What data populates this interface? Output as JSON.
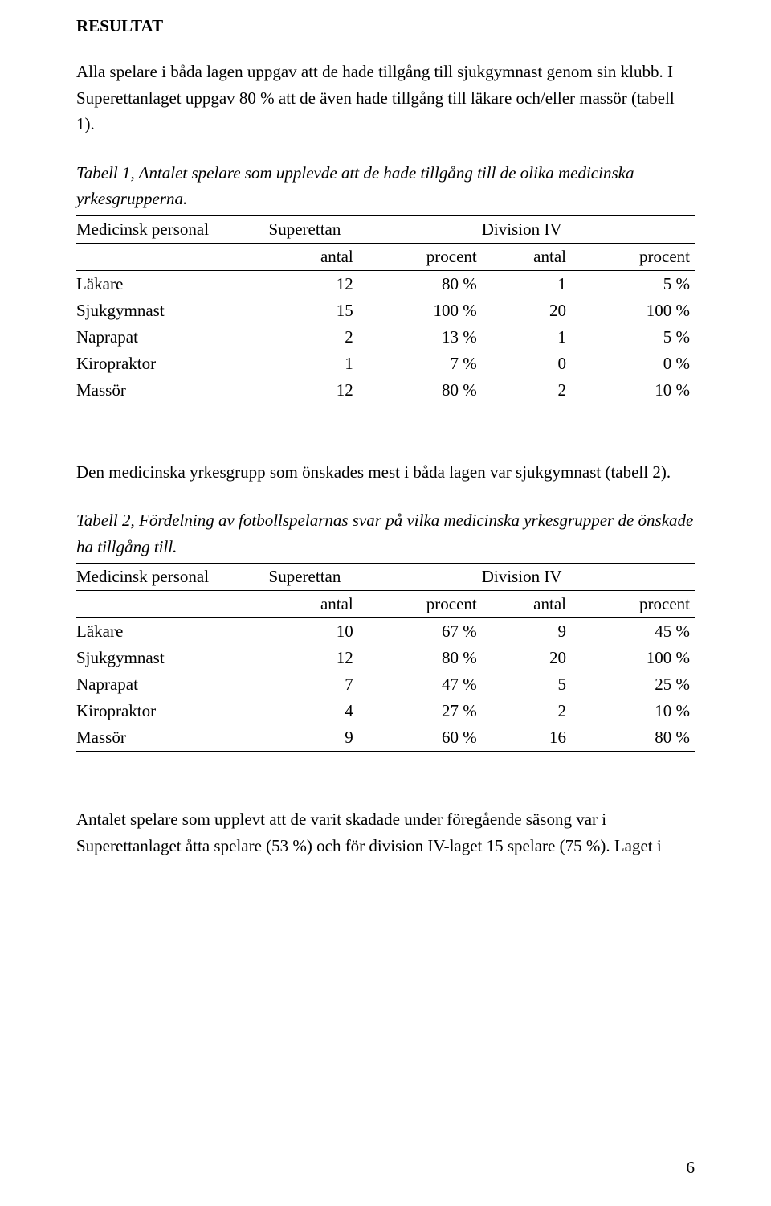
{
  "heading": "RESULTAT",
  "para1": "Alla spelare i båda lagen uppgav att de hade tillgång till sjukgymnast genom sin klubb. I Superettanlaget uppgav 80 % att de även hade tillgång till läkare och/eller massör (tabell 1).",
  "table1": {
    "caption": "Tabell 1, Antalet spelare som upplevde att de hade tillgång till de olika medicinska yrkesgrupperna.",
    "head_col1": "Medicinsk personal",
    "head_grp1": "Superettan",
    "head_grp2": "Division IV",
    "sub_antal": "antal",
    "sub_procent": "procent",
    "rows": [
      {
        "label": "Läkare",
        "a1": "12",
        "p1": "80 %",
        "a2": "1",
        "p2": "5 %"
      },
      {
        "label": "Sjukgymnast",
        "a1": "15",
        "p1": "100 %",
        "a2": "20",
        "p2": "100 %"
      },
      {
        "label": "Naprapat",
        "a1": "2",
        "p1": "13 %",
        "a2": "1",
        "p2": "5 %"
      },
      {
        "label": "Kiropraktor",
        "a1": "1",
        "p1": "7 %",
        "a2": "0",
        "p2": "0 %"
      },
      {
        "label": "Massör",
        "a1": "12",
        "p1": "80 %",
        "a2": "2",
        "p2": "10 %"
      }
    ]
  },
  "para2": "Den medicinska yrkesgrupp som önskades mest i båda lagen var sjukgymnast (tabell 2).",
  "table2": {
    "caption": "Tabell 2, Fördelning av fotbollspelarnas svar på vilka medicinska yrkesgrupper de önskade ha tillgång till.",
    "head_col1": "Medicinsk personal",
    "head_grp1": "Superettan",
    "head_grp2": "Division IV",
    "sub_antal": "antal",
    "sub_procent": "procent",
    "rows": [
      {
        "label": "Läkare",
        "a1": "10",
        "p1": "67 %",
        "a2": "9",
        "p2": "45 %"
      },
      {
        "label": "Sjukgymnast",
        "a1": "12",
        "p1": "80 %",
        "a2": "20",
        "p2": "100 %"
      },
      {
        "label": "Naprapat",
        "a1": "7",
        "p1": "47 %",
        "a2": "5",
        "p2": "25 %"
      },
      {
        "label": "Kiropraktor",
        "a1": "4",
        "p1": "27 %",
        "a2": "2",
        "p2": "10 %"
      },
      {
        "label": "Massör",
        "a1": "9",
        "p1": "60 %",
        "a2": "16",
        "p2": "80 %"
      }
    ]
  },
  "para3": "Antalet spelare som upplevt att de varit skadade under föregående säsong var i Superettanlaget åtta spelare (53 %) och för division IV-laget 15 spelare (75 %). Laget i",
  "page_number": "6"
}
